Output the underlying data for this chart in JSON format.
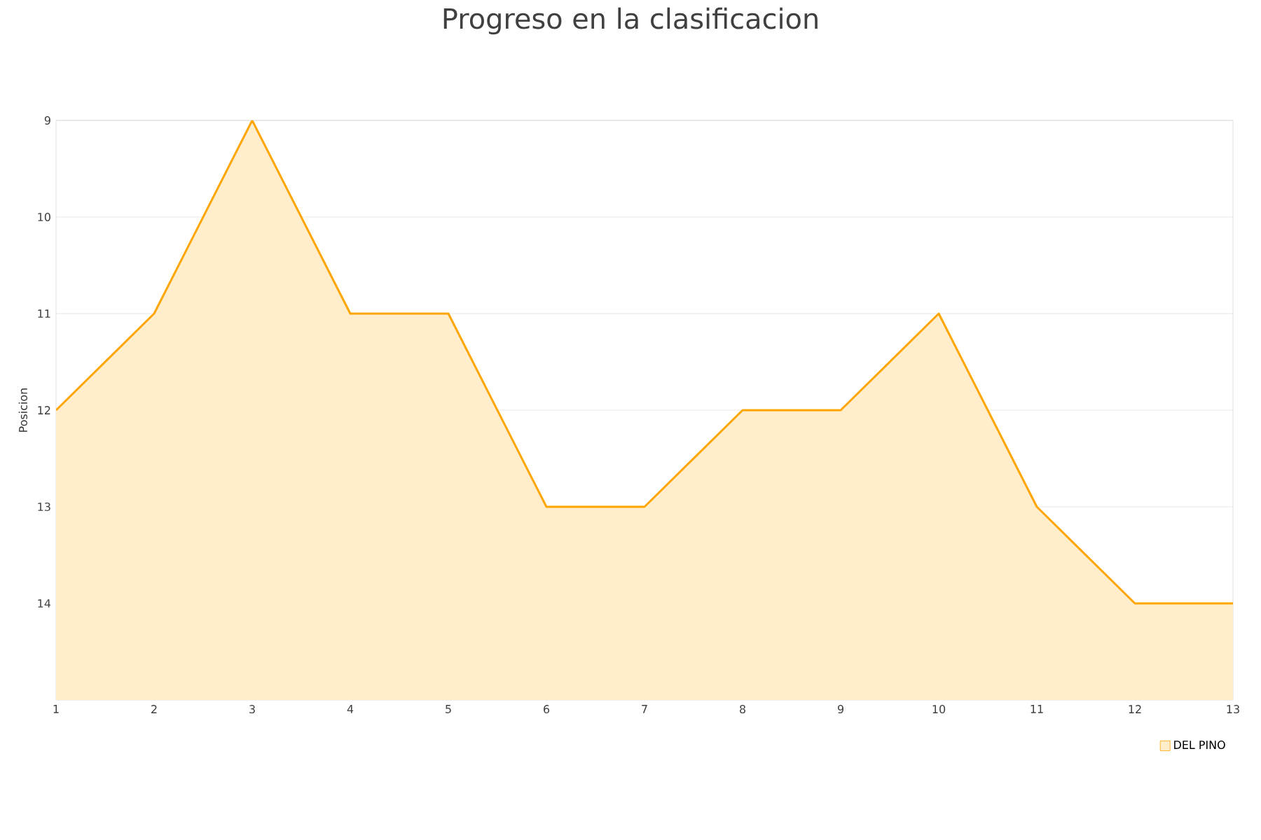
{
  "chart_data": {
    "type": "area",
    "title": "Progreso en la clasificacion",
    "ylabel": "Posicion",
    "x": [
      1,
      2,
      3,
      4,
      5,
      6,
      7,
      8,
      9,
      10,
      11,
      12,
      13
    ],
    "series": [
      {
        "name": "DEL PINO",
        "color": "#ffa500",
        "values": [
          12,
          11,
          9,
          11,
          11,
          13,
          13,
          12,
          12,
          11,
          13,
          14,
          14
        ]
      }
    ],
    "xlim": [
      1,
      13
    ],
    "xticks": [
      1,
      2,
      3,
      4,
      5,
      6,
      7,
      8,
      9,
      10,
      11,
      12,
      13
    ],
    "ylim": [
      15,
      9
    ],
    "yticks": [
      9,
      10,
      11,
      12,
      13,
      14
    ],
    "grid": "y",
    "legend": "bottom right",
    "marker": "none",
    "line_style": "solid"
  }
}
